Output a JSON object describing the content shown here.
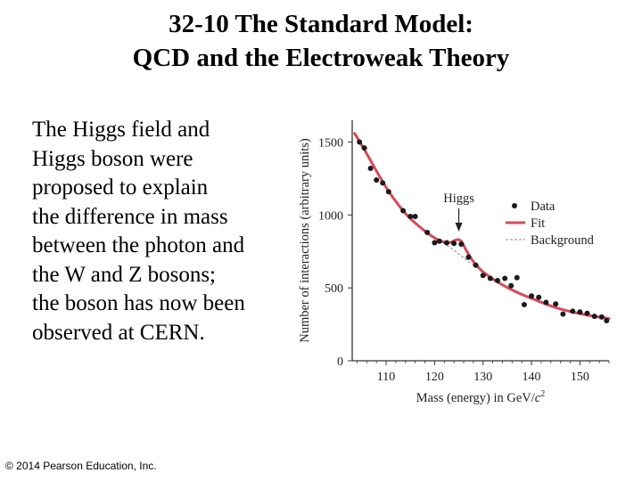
{
  "slide": {
    "title_line1": "32-10 The Standard Model:",
    "title_line2": "QCD and the Electroweak Theory",
    "body_lines": [
      "The Higgs field and",
      "Higgs boson were",
      "proposed to explain",
      "the difference in mass",
      "between the photon and",
      "the W and Z bosons;",
      "the boson has now been",
      "observed at CERN."
    ],
    "copyright": "© 2014 Pearson Education, Inc."
  },
  "chart_data": {
    "type": "scatter",
    "ylabel": "Number of interactions (arbitrary units)",
    "xlabel": "Mass (energy) in GeV/",
    "xlabel_italic": "c",
    "xlabel_sup": "2",
    "xlim": [
      103,
      156
    ],
    "ylim": [
      0,
      1650
    ],
    "xticks": [
      110,
      120,
      130,
      140,
      150
    ],
    "yticks": [
      0,
      500,
      1000,
      1500
    ],
    "annotation": {
      "text": "Higgs",
      "x": 125
    },
    "legend": {
      "position": "right",
      "items": [
        {
          "label": "Data",
          "kind": "dot"
        },
        {
          "label": "Fit",
          "kind": "line"
        },
        {
          "label": "Background",
          "kind": "dashed"
        }
      ]
    },
    "colors": {
      "fit": "#d9485a",
      "data": "#1a1a1a",
      "background": "#888888",
      "axis": "#333333"
    },
    "data": [
      {
        "x": 104.5,
        "y": 1500
      },
      {
        "x": 105.5,
        "y": 1460
      },
      {
        "x": 106.8,
        "y": 1320
      },
      {
        "x": 108.0,
        "y": 1240
      },
      {
        "x": 109.3,
        "y": 1220
      },
      {
        "x": 110.5,
        "y": 1160
      },
      {
        "x": 113.5,
        "y": 1030
      },
      {
        "x": 115.0,
        "y": 990
      },
      {
        "x": 116.0,
        "y": 990
      },
      {
        "x": 118.5,
        "y": 880
      },
      {
        "x": 120.0,
        "y": 810
      },
      {
        "x": 121.0,
        "y": 820
      },
      {
        "x": 122.5,
        "y": 810
      },
      {
        "x": 124.0,
        "y": 805
      },
      {
        "x": 125.5,
        "y": 800
      },
      {
        "x": 127.0,
        "y": 710
      },
      {
        "x": 128.5,
        "y": 655
      },
      {
        "x": 130.0,
        "y": 585
      },
      {
        "x": 131.5,
        "y": 565
      },
      {
        "x": 133.0,
        "y": 550
      },
      {
        "x": 134.5,
        "y": 565
      },
      {
        "x": 135.8,
        "y": 515
      },
      {
        "x": 137.0,
        "y": 570
      },
      {
        "x": 138.5,
        "y": 385
      },
      {
        "x": 140.0,
        "y": 445
      },
      {
        "x": 141.5,
        "y": 435
      },
      {
        "x": 143.0,
        "y": 400
      },
      {
        "x": 145.0,
        "y": 390
      },
      {
        "x": 146.5,
        "y": 320
      },
      {
        "x": 148.5,
        "y": 340
      },
      {
        "x": 150.0,
        "y": 335
      },
      {
        "x": 151.5,
        "y": 325
      },
      {
        "x": 153.0,
        "y": 305
      },
      {
        "x": 154.5,
        "y": 300
      },
      {
        "x": 155.5,
        "y": 275
      }
    ],
    "fit": [
      {
        "x": 103.5,
        "y": 1560
      },
      {
        "x": 106,
        "y": 1420
      },
      {
        "x": 110,
        "y": 1190
      },
      {
        "x": 114,
        "y": 1010
      },
      {
        "x": 118,
        "y": 890
      },
      {
        "x": 121,
        "y": 825
      },
      {
        "x": 123,
        "y": 810
      },
      {
        "x": 124.5,
        "y": 830
      },
      {
        "x": 125.5,
        "y": 820
      },
      {
        "x": 126.5,
        "y": 760
      },
      {
        "x": 128,
        "y": 680
      },
      {
        "x": 130,
        "y": 610
      },
      {
        "x": 133,
        "y": 540
      },
      {
        "x": 137,
        "y": 470
      },
      {
        "x": 141,
        "y": 415
      },
      {
        "x": 145,
        "y": 365
      },
      {
        "x": 149,
        "y": 330
      },
      {
        "x": 153,
        "y": 305
      },
      {
        "x": 156,
        "y": 290
      }
    ],
    "background": [
      {
        "x": 121,
        "y": 825
      },
      {
        "x": 124,
        "y": 760
      },
      {
        "x": 127,
        "y": 680
      },
      {
        "x": 130,
        "y": 610
      }
    ]
  }
}
